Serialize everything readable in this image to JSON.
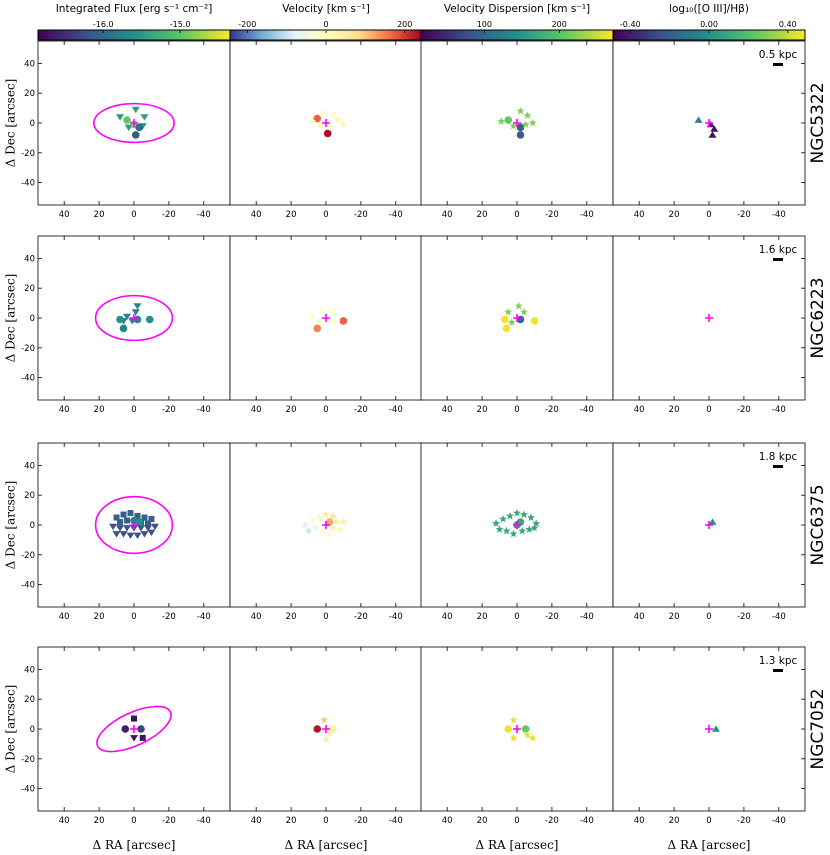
{
  "figure": {
    "xlabel": "Δ RA [arcsec]",
    "ylabel": "Δ Dec [arcsec]",
    "x_ticks": [
      "40",
      "20",
      "0",
      "-20",
      "-40"
    ],
    "y_ticks": [
      "40",
      "20",
      "0",
      "-20",
      "-40"
    ]
  },
  "colorbars": [
    {
      "label": "Integrated Flux [erg s⁻¹ cm⁻²]",
      "ticks": [
        "-16.0",
        "-15.0"
      ],
      "colormap": "viridis"
    },
    {
      "label": "Velocity [km s⁻¹]",
      "ticks": [
        "-200",
        "0",
        "200"
      ],
      "colormap": "rdylbu"
    },
    {
      "label": "Velocity Dispersion [km s⁻¹]",
      "ticks": [
        "100",
        "200"
      ],
      "colormap": "viridis"
    },
    {
      "label": "log₁₀([O III]/Hβ)",
      "ticks": [
        "-0.40",
        "0.00",
        "0.40"
      ],
      "colormap": "viridis"
    }
  ],
  "colors": {
    "ellipse": "#ff00ff",
    "center_marker": "#ff00ff",
    "viridis": [
      "#440154",
      "#3b528b",
      "#21918c",
      "#5ec962",
      "#fde725"
    ],
    "rdylbu": [
      "#313695",
      "#74add1",
      "#e0f3f8",
      "#ffffbf",
      "#fee090",
      "#f46d43",
      "#a50026"
    ]
  },
  "chart_data": {
    "type": "scatter",
    "x_range": [
      55,
      -55
    ],
    "y_range": [
      -55,
      55
    ],
    "galaxies": [
      {
        "name": "NGC5322",
        "scale_label": "0.5 kpc",
        "ellipse": {
          "cx": 0,
          "cy": 0,
          "a": 23,
          "b": 13,
          "angle": 0
        },
        "flux": [
          {
            "x": 8,
            "y": 4,
            "shape": "triangle-down",
            "c": 0.55
          },
          {
            "x": 4,
            "y": 2,
            "shape": "circle",
            "c": 0.75
          },
          {
            "x": -1,
            "y": 9,
            "shape": "triangle-down",
            "c": 0.55
          },
          {
            "x": -6,
            "y": 4,
            "shape": "triangle-down",
            "c": 0.55
          },
          {
            "x": 3,
            "y": -3,
            "shape": "triangle-down",
            "c": 0.55
          },
          {
            "x": -5,
            "y": -2,
            "shape": "triangle-down",
            "c": 0.55
          },
          {
            "x": 0,
            "y": -1,
            "shape": "circle",
            "c": 0.8
          },
          {
            "x": -3,
            "y": -3,
            "shape": "circle",
            "c": 0.35
          },
          {
            "x": -1,
            "y": -8,
            "shape": "circle",
            "c": 0.28
          }
        ],
        "velocity": [
          {
            "x": 5,
            "y": 3,
            "shape": "circle",
            "c": 0.85
          },
          {
            "x": -1,
            "y": -7,
            "shape": "circle",
            "c": 0.98
          },
          {
            "x": 8,
            "y": 1,
            "shape": "star",
            "c": 0.5
          },
          {
            "x": 2,
            "y": 7,
            "shape": "star",
            "c": 0.5
          },
          {
            "x": -4,
            "y": 5,
            "shape": "star",
            "c": 0.5
          },
          {
            "x": -7,
            "y": 2,
            "shape": "star",
            "c": 0.55
          },
          {
            "x": -10,
            "y": -1,
            "shape": "star",
            "c": 0.55
          },
          {
            "x": 3,
            "y": -2,
            "shape": "star",
            "c": 0.5
          },
          {
            "x": -3,
            "y": -3,
            "shape": "star",
            "c": 0.5
          }
        ],
        "dispersion": [
          {
            "x": 5,
            "y": 2,
            "shape": "circle",
            "c": 0.75
          },
          {
            "x": -2,
            "y": -3,
            "shape": "circle",
            "c": 0.3
          },
          {
            "x": -2,
            "y": -8,
            "shape": "circle",
            "c": 0.3
          },
          {
            "x": 9,
            "y": 1,
            "shape": "star",
            "c": 0.8
          },
          {
            "x": -2,
            "y": 8,
            "shape": "star",
            "c": 0.8
          },
          {
            "x": -6,
            "y": 5,
            "shape": "star",
            "c": 0.8
          },
          {
            "x": -9,
            "y": 0,
            "shape": "star",
            "c": 0.8
          },
          {
            "x": 2,
            "y": -2,
            "shape": "star",
            "c": 0.8
          },
          {
            "x": -5,
            "y": -1,
            "shape": "star",
            "c": 0.8
          }
        ],
        "ratio": [
          {
            "x": 6,
            "y": 2,
            "shape": "triangle-up",
            "c": 0.45
          },
          {
            "x": -1,
            "y": -1,
            "shape": "triangle-up",
            "c": 0.05
          },
          {
            "x": -3,
            "y": -4,
            "shape": "triangle-up",
            "c": 0.05
          },
          {
            "x": -2,
            "y": -8,
            "shape": "triangle-up",
            "c": 0.05
          }
        ]
      },
      {
        "name": "NGC6223",
        "scale_label": "1.6 kpc",
        "ellipse": {
          "cx": 0,
          "cy": 0,
          "a": 22,
          "b": 15,
          "angle": 0
        },
        "flux": [
          {
            "x": 4,
            "y": 1,
            "shape": "triangle-down",
            "c": 0.45
          },
          {
            "x": -2,
            "y": 8,
            "shape": "triangle-down",
            "c": 0.45
          },
          {
            "x": -1,
            "y": 4,
            "shape": "triangle-down",
            "c": 0.45
          },
          {
            "x": 6,
            "y": -2,
            "shape": "triangle-down",
            "c": 0.45
          },
          {
            "x": 8,
            "y": -1,
            "shape": "circle",
            "c": 0.5
          },
          {
            "x": 6,
            "y": -7,
            "shape": "circle",
            "c": 0.45
          },
          {
            "x": -2,
            "y": -1,
            "shape": "circle",
            "c": 0.45
          },
          {
            "x": -9,
            "y": -1,
            "shape": "circle",
            "c": 0.5
          },
          {
            "x": 1,
            "y": -2,
            "shape": "triangle-down",
            "c": 0.45
          }
        ],
        "velocity": [
          {
            "x": 5,
            "y": -7,
            "shape": "circle",
            "c": 0.8
          },
          {
            "x": -10,
            "y": -2,
            "shape": "circle",
            "c": 0.85
          },
          {
            "x": 8,
            "y": 1,
            "shape": "star",
            "c": 0.5
          },
          {
            "x": 2,
            "y": 6,
            "shape": "star",
            "c": 0.5
          },
          {
            "x": -4,
            "y": 4,
            "shape": "star",
            "c": 0.5
          },
          {
            "x": 4,
            "y": -2,
            "shape": "star",
            "c": 0.5
          },
          {
            "x": -4,
            "y": -3,
            "shape": "star",
            "c": 0.5
          }
        ],
        "dispersion": [
          {
            "x": 7,
            "y": -1,
            "shape": "circle",
            "c": 0.98
          },
          {
            "x": 6,
            "y": -7,
            "shape": "circle",
            "c": 0.98
          },
          {
            "x": -2,
            "y": -1,
            "shape": "circle",
            "c": 0.35
          },
          {
            "x": -10,
            "y": -2,
            "shape": "circle",
            "c": 0.98
          },
          {
            "x": -1,
            "y": 8,
            "shape": "star",
            "c": 0.8
          },
          {
            "x": 5,
            "y": 4,
            "shape": "star",
            "c": 0.8
          },
          {
            "x": -4,
            "y": 4,
            "shape": "star",
            "c": 0.8
          },
          {
            "x": 3,
            "y": -3,
            "shape": "star",
            "c": 0.8
          }
        ],
        "ratio": []
      },
      {
        "name": "NGC6375",
        "scale_label": "1.8 kpc",
        "ellipse": {
          "cx": 0,
          "cy": 0,
          "a": 22,
          "b": 19,
          "angle": 0
        },
        "flux": [
          {
            "x": 10,
            "y": 5,
            "shape": "square",
            "c": 0.3
          },
          {
            "x": 6,
            "y": 7,
            "shape": "square",
            "c": 0.3
          },
          {
            "x": 2,
            "y": 8,
            "shape": "square",
            "c": 0.3
          },
          {
            "x": -2,
            "y": 6,
            "shape": "square",
            "c": 0.3
          },
          {
            "x": -6,
            "y": 5,
            "shape": "square",
            "c": 0.3
          },
          {
            "x": -10,
            "y": 4,
            "shape": "square",
            "c": 0.3
          },
          {
            "x": 8,
            "y": 2,
            "shape": "square",
            "c": 0.3
          },
          {
            "x": 4,
            "y": 3,
            "shape": "square",
            "c": 0.3
          },
          {
            "x": -4,
            "y": 2,
            "shape": "square",
            "c": 0.3
          },
          {
            "x": -8,
            "y": 1,
            "shape": "square",
            "c": 0.3
          },
          {
            "x": 0,
            "y": 3,
            "shape": "circle",
            "c": 0.45
          },
          {
            "x": -3,
            "y": 2,
            "shape": "circle",
            "c": 0.5
          },
          {
            "x": 12,
            "y": -1,
            "shape": "triangle-down",
            "c": 0.25
          },
          {
            "x": 8,
            "y": -2,
            "shape": "triangle-down",
            "c": 0.25
          },
          {
            "x": 4,
            "y": -2,
            "shape": "triangle-down",
            "c": 0.25
          },
          {
            "x": 0,
            "y": -2,
            "shape": "triangle-down",
            "c": 0.25
          },
          {
            "x": -4,
            "y": -2,
            "shape": "triangle-down",
            "c": 0.25
          },
          {
            "x": -8,
            "y": -2,
            "shape": "triangle-down",
            "c": 0.25
          },
          {
            "x": -12,
            "y": -1,
            "shape": "triangle-down",
            "c": 0.25
          },
          {
            "x": 10,
            "y": -6,
            "shape": "triangle-down",
            "c": 0.25
          },
          {
            "x": 6,
            "y": -6,
            "shape": "triangle-down",
            "c": 0.25
          },
          {
            "x": 2,
            "y": -7,
            "shape": "triangle-down",
            "c": 0.25
          },
          {
            "x": -2,
            "y": -7,
            "shape": "triangle-down",
            "c": 0.25
          },
          {
            "x": -6,
            "y": -6,
            "shape": "triangle-down",
            "c": 0.25
          },
          {
            "x": -10,
            "y": -5,
            "shape": "triangle-down",
            "c": 0.25
          }
        ],
        "velocity": [
          {
            "x": -2,
            "y": 2,
            "shape": "circle",
            "c": 0.75
          },
          {
            "x": -4,
            "y": 6,
            "shape": "star",
            "c": 0.65
          },
          {
            "x": 0,
            "y": 7,
            "shape": "star",
            "c": 0.6
          },
          {
            "x": 4,
            "y": 5,
            "shape": "star",
            "c": 0.55
          },
          {
            "x": 8,
            "y": 3,
            "shape": "star",
            "c": 0.45
          },
          {
            "x": 12,
            "y": 0,
            "shape": "star",
            "c": 0.35
          },
          {
            "x": 10,
            "y": -4,
            "shape": "star",
            "c": 0.3
          },
          {
            "x": 6,
            "y": -2,
            "shape": "star",
            "c": 0.4
          },
          {
            "x": 2,
            "y": -4,
            "shape": "star",
            "c": 0.45
          },
          {
            "x": -6,
            "y": 2,
            "shape": "star",
            "c": 0.6
          },
          {
            "x": -10,
            "y": 2,
            "shape": "star",
            "c": 0.6
          },
          {
            "x": -8,
            "y": -3,
            "shape": "star",
            "c": 0.55
          },
          {
            "x": -4,
            "y": -2,
            "shape": "star",
            "c": 0.55
          },
          {
            "x": -2,
            "y": -6,
            "shape": "star",
            "c": 0.5
          }
        ],
        "dispersion": [
          {
            "x": -2,
            "y": 2,
            "shape": "circle",
            "c": 0.6
          },
          {
            "x": 0,
            "y": 0,
            "shape": "circle",
            "c": 0.55
          },
          {
            "x": 12,
            "y": 1,
            "shape": "star",
            "c": 0.6
          },
          {
            "x": 8,
            "y": 4,
            "shape": "star",
            "c": 0.6
          },
          {
            "x": 4,
            "y": 6,
            "shape": "star",
            "c": 0.6
          },
          {
            "x": 0,
            "y": 8,
            "shape": "star",
            "c": 0.6
          },
          {
            "x": -4,
            "y": 7,
            "shape": "star",
            "c": 0.6
          },
          {
            "x": -8,
            "y": 5,
            "shape": "star",
            "c": 0.6
          },
          {
            "x": -11,
            "y": 1,
            "shape": "star",
            "c": 0.6
          },
          {
            "x": 10,
            "y": -3,
            "shape": "star",
            "c": 0.6
          },
          {
            "x": 6,
            "y": -4,
            "shape": "star",
            "c": 0.6
          },
          {
            "x": 2,
            "y": -6,
            "shape": "star",
            "c": 0.6
          },
          {
            "x": -3,
            "y": -4,
            "shape": "star",
            "c": 0.6
          },
          {
            "x": -7,
            "y": -3,
            "shape": "star",
            "c": 0.6
          },
          {
            "x": -10,
            "y": -2,
            "shape": "star",
            "c": 0.6
          }
        ],
        "ratio": [
          {
            "x": -2,
            "y": 2,
            "shape": "triangle-up",
            "c": 0.5
          }
        ]
      },
      {
        "name": "NGC7052",
        "scale_label": "1.3 kpc",
        "ellipse": {
          "cx": 0,
          "cy": 0,
          "a": 23,
          "b": 11,
          "angle": -25
        },
        "flux": [
          {
            "x": 0,
            "y": 7,
            "shape": "square",
            "c": 0.05
          },
          {
            "x": -5,
            "y": -6,
            "shape": "square",
            "c": 0.05
          },
          {
            "x": 5,
            "y": 0,
            "shape": "circle",
            "c": 0.1
          },
          {
            "x": -4,
            "y": 0,
            "shape": "circle",
            "c": 0.2
          },
          {
            "x": 0,
            "y": -6,
            "shape": "triangle-down",
            "c": 0.05
          }
        ],
        "velocity": [
          {
            "x": 5,
            "y": 0,
            "shape": "circle",
            "c": 0.97
          },
          {
            "x": -4,
            "y": 0,
            "shape": "circle",
            "c": 0.58
          },
          {
            "x": 1,
            "y": 6,
            "shape": "star",
            "c": 0.7
          },
          {
            "x": -2,
            "y": -3,
            "shape": "star",
            "c": 0.58
          },
          {
            "x": 0,
            "y": -7,
            "shape": "star",
            "c": 0.6
          }
        ],
        "dispersion": [
          {
            "x": 5,
            "y": 0,
            "shape": "circle",
            "c": 0.97
          },
          {
            "x": -5,
            "y": 0,
            "shape": "circle",
            "c": 0.75
          },
          {
            "x": 2,
            "y": 6,
            "shape": "star",
            "c": 0.97
          },
          {
            "x": 2,
            "y": -6,
            "shape": "star",
            "c": 0.97
          },
          {
            "x": -6,
            "y": -4,
            "shape": "star",
            "c": 0.97
          },
          {
            "x": -9,
            "y": -6,
            "shape": "star",
            "c": 0.97
          }
        ],
        "ratio": [
          {
            "x": -4,
            "y": 0,
            "shape": "triangle-up",
            "c": 0.5
          }
        ]
      }
    ]
  }
}
